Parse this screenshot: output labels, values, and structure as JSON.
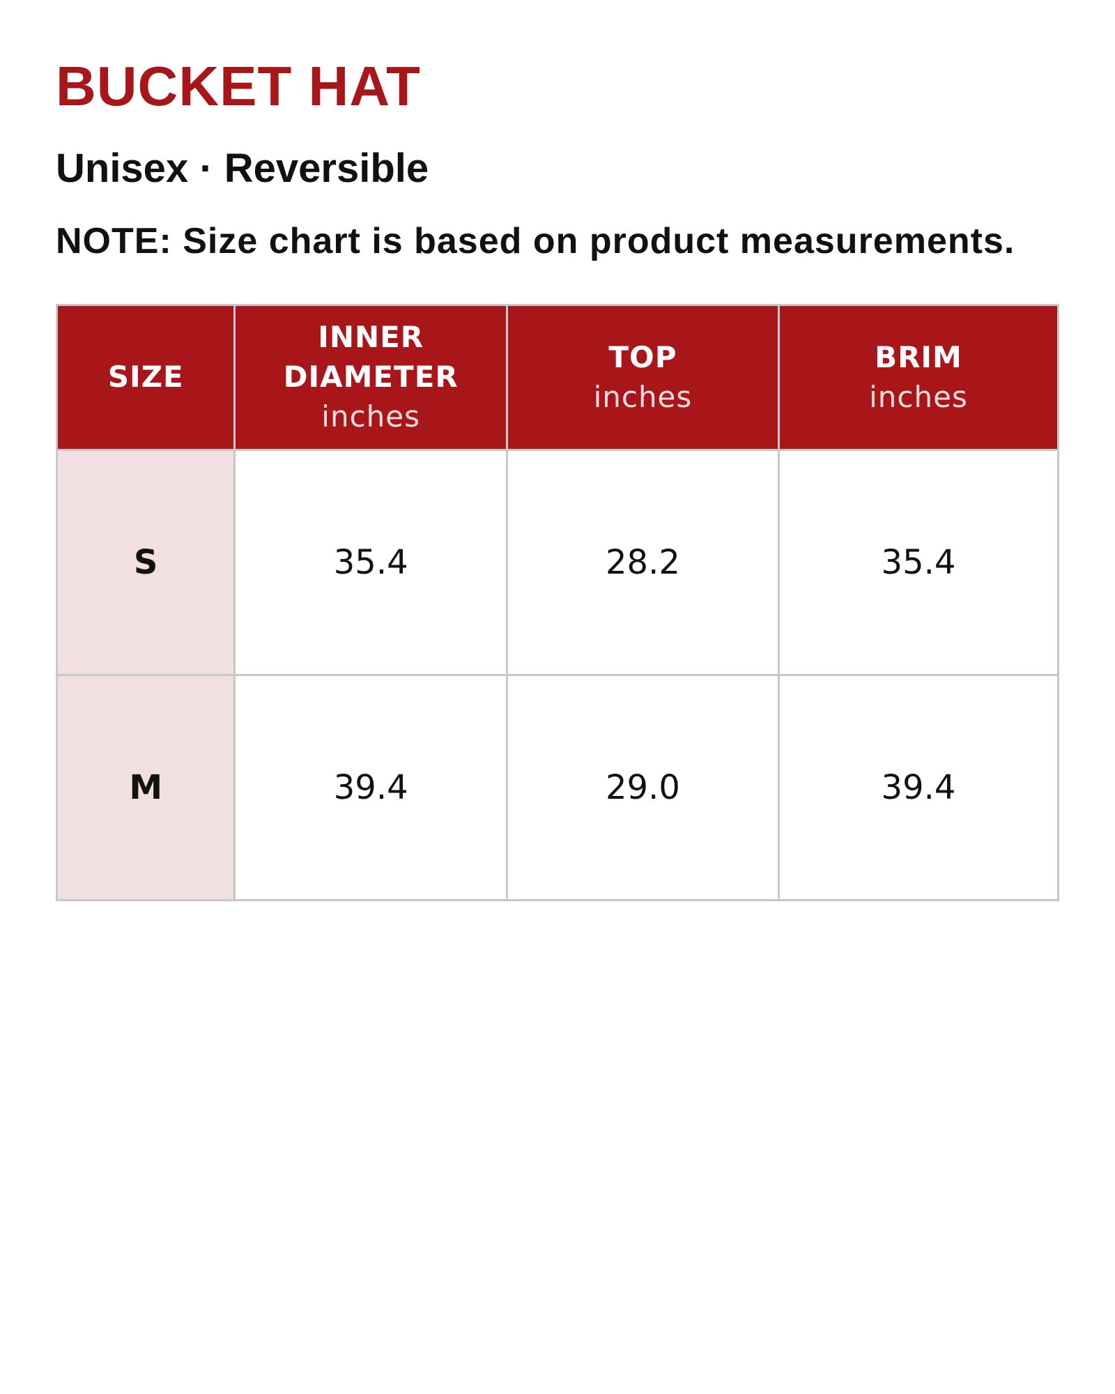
{
  "header": {
    "title": "BUCKET HAT",
    "subtitle": "Unisex · Reversible",
    "note": "NOTE: Size chart is based on product measurements."
  },
  "table": {
    "columns": [
      {
        "title": "SIZE"
      },
      {
        "title": "INNER DIAMETER",
        "unit": "inches"
      },
      {
        "title": "TOP",
        "unit": "inches"
      },
      {
        "title": "BRIM",
        "unit": "inches"
      }
    ],
    "rows": [
      [
        "S",
        "35.4",
        "28.2",
        "35.4"
      ],
      [
        "M",
        "39.4",
        "29.0",
        "39.4"
      ]
    ]
  }
}
